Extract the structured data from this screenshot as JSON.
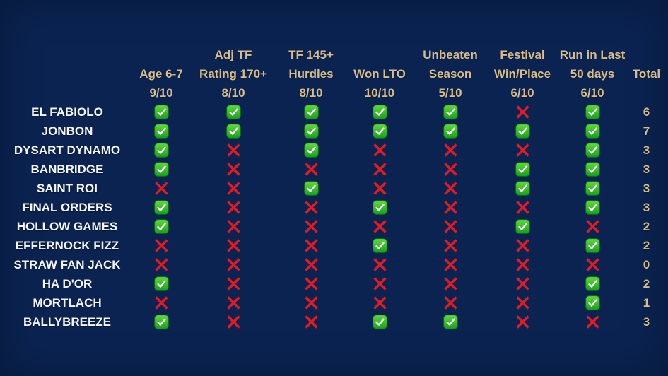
{
  "chart_data": {
    "type": "table",
    "columns": [
      {
        "line1": "",
        "line2": "Age 6-7",
        "line3": "9/10"
      },
      {
        "line1": "Adj TF",
        "line2": "Rating 170+",
        "line3": "8/10"
      },
      {
        "line1": "TF 145+",
        "line2": "Hurdles",
        "line3": "8/10"
      },
      {
        "line1": "",
        "line2": "Won LTO",
        "line3": "10/10"
      },
      {
        "line1": "Unbeaten",
        "line2": "Season",
        "line3": "5/10"
      },
      {
        "line1": "Festival",
        "line2": "Win/Place",
        "line3": "6/10"
      },
      {
        "line1": "Run in Last",
        "line2": "50 days",
        "line3": "6/10"
      }
    ],
    "total_label": "Total",
    "rows": [
      {
        "name": "EL FABIOLO",
        "marks": [
          true,
          true,
          true,
          true,
          true,
          false,
          true
        ],
        "total": 6
      },
      {
        "name": "JONBON",
        "marks": [
          true,
          true,
          true,
          true,
          true,
          true,
          true
        ],
        "total": 7
      },
      {
        "name": "DYSART DYNAMO",
        "marks": [
          true,
          false,
          true,
          false,
          false,
          false,
          true
        ],
        "total": 3
      },
      {
        "name": "BANBRIDGE",
        "marks": [
          true,
          false,
          false,
          false,
          false,
          true,
          true
        ],
        "total": 3
      },
      {
        "name": "SAINT ROI",
        "marks": [
          false,
          false,
          true,
          false,
          false,
          true,
          true
        ],
        "total": 3
      },
      {
        "name": "FINAL ORDERS",
        "marks": [
          true,
          false,
          false,
          true,
          false,
          false,
          true
        ],
        "total": 3
      },
      {
        "name": "HOLLOW GAMES",
        "marks": [
          true,
          false,
          false,
          false,
          false,
          true,
          false
        ],
        "total": 2
      },
      {
        "name": "EFFERNOCK FIZZ",
        "marks": [
          false,
          false,
          false,
          true,
          false,
          false,
          true
        ],
        "total": 2
      },
      {
        "name": "STRAW FAN JACK",
        "marks": [
          false,
          false,
          false,
          false,
          false,
          false,
          false
        ],
        "total": 0
      },
      {
        "name": "HA D'OR",
        "marks": [
          true,
          false,
          false,
          false,
          false,
          false,
          true
        ],
        "total": 2
      },
      {
        "name": "MORTLACH",
        "marks": [
          false,
          false,
          false,
          false,
          false,
          false,
          true
        ],
        "total": 1
      },
      {
        "name": "BALLYBREEZE",
        "marks": [
          true,
          false,
          false,
          true,
          true,
          false,
          false
        ],
        "total": 3
      }
    ]
  },
  "icons": {
    "check": "✅",
    "cross": "❌"
  },
  "colors": {
    "background": "#0a2351",
    "header_text": "#d8bc8a",
    "row_text": "#f5f6fa",
    "total_text": "#d8bc8a",
    "check_green_top": "#63d93c",
    "check_green_bottom": "#17a11c",
    "cross_red": "#e01b24"
  }
}
